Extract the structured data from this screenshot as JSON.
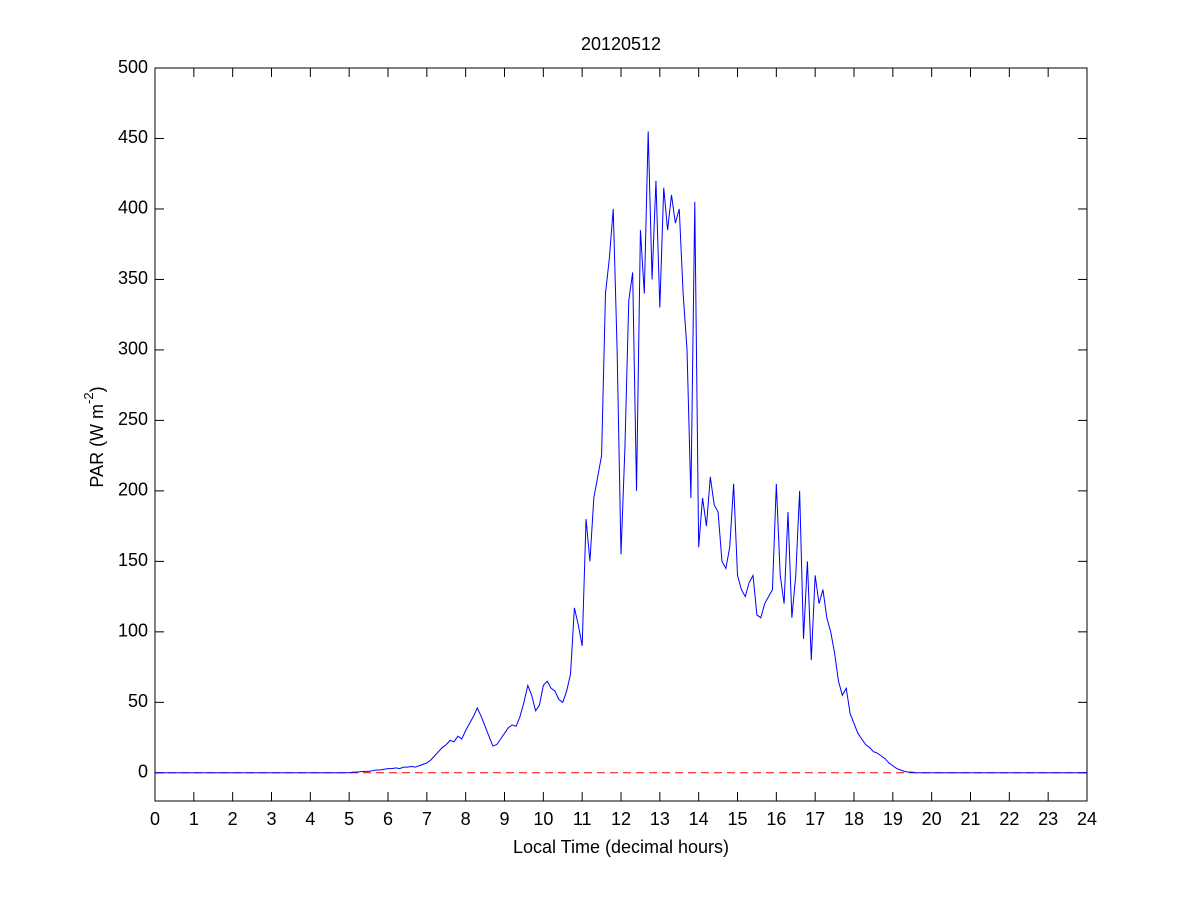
{
  "chart_data": {
    "type": "line",
    "title": "20120512",
    "xlabel": "Local Time (decimal hours)",
    "ylabel": [
      "PAR (W m",
      "-2",
      ")"
    ],
    "x": [
      0,
      5,
      5.1,
      5.2,
      5.3,
      5.4,
      5.5,
      5.6,
      5.7,
      5.8,
      5.9,
      6,
      6.1,
      6.2,
      6.3,
      6.4,
      6.5,
      6.6,
      6.7,
      6.8,
      6.9,
      7,
      7.1,
      7.2,
      7.3,
      7.4,
      7.5,
      7.6,
      7.7,
      7.8,
      7.9,
      8,
      8.1,
      8.2,
      8.3,
      8.4,
      8.5,
      8.6,
      8.7,
      8.8,
      8.9,
      9,
      9.1,
      9.2,
      9.3,
      9.4,
      9.5,
      9.6,
      9.7,
      9.8,
      9.9,
      10,
      10.1,
      10.2,
      10.3,
      10.4,
      10.5,
      10.6,
      10.7,
      10.8,
      10.9,
      11,
      11.1,
      11.2,
      11.3,
      11.4,
      11.5,
      11.6,
      11.7,
      11.8,
      11.9,
      12,
      12.1,
      12.2,
      12.3,
      12.4,
      12.5,
      12.6,
      12.7,
      12.8,
      12.9,
      13,
      13.1,
      13.2,
      13.3,
      13.4,
      13.5,
      13.6,
      13.7,
      13.8,
      13.9,
      14,
      14.1,
      14.2,
      14.3,
      14.4,
      14.5,
      14.6,
      14.7,
      14.8,
      14.9,
      15,
      15.1,
      15.2,
      15.3,
      15.4,
      15.5,
      15.6,
      15.7,
      15.8,
      15.9,
      16,
      16.1,
      16.2,
      16.3,
      16.4,
      16.5,
      16.6,
      16.7,
      16.8,
      16.9,
      17,
      17.1,
      17.2,
      17.3,
      17.4,
      17.5,
      17.6,
      17.7,
      17.8,
      17.9,
      18,
      18.1,
      18.2,
      18.3,
      18.4,
      18.5,
      18.6,
      18.7,
      18.8,
      18.9,
      19,
      19.1,
      19.2,
      19.3,
      19.4,
      19.5,
      19.6,
      19.7,
      19.8,
      24
    ],
    "values": [
      0,
      0,
      0.5,
      0.5,
      0.8,
      1,
      1,
      1.5,
      2,
      2,
      2.5,
      3,
      3,
      3.5,
      3,
      4,
      4,
      4.5,
      4,
      5,
      6,
      7,
      9,
      12,
      15,
      18,
      20,
      23,
      22,
      26,
      24,
      30,
      35,
      40,
      46,
      40,
      33,
      26,
      19,
      20,
      24,
      28,
      32,
      34,
      33,
      40,
      50,
      62,
      55,
      44,
      48,
      62,
      65,
      60,
      58,
      52,
      50,
      58,
      70,
      117,
      105,
      90,
      180,
      150,
      195,
      210,
      225,
      340,
      365,
      400,
      300,
      155,
      230,
      335,
      355,
      200,
      385,
      340,
      455,
      350,
      420,
      330,
      415,
      385,
      410,
      390,
      400,
      340,
      300,
      195,
      405,
      160,
      195,
      175,
      210,
      190,
      185,
      150,
      145,
      160,
      205,
      140,
      130,
      125,
      135,
      140,
      112,
      110,
      120,
      125,
      130,
      205,
      140,
      120,
      185,
      110,
      140,
      200,
      95,
      150,
      80,
      140,
      120,
      130,
      110,
      100,
      85,
      65,
      55,
      60,
      42,
      35,
      28,
      24,
      20,
      18,
      15,
      14,
      12,
      10,
      7,
      5,
      3,
      2,
      1,
      0.5,
      0.5,
      0,
      0,
      0,
      0
    ],
    "color": "#0000ff",
    "reference_line": {
      "value": 0,
      "color": "#ff0000",
      "style": "dashed"
    },
    "xlim": [
      0,
      24
    ],
    "xticks": [
      0,
      1,
      2,
      3,
      4,
      5,
      6,
      7,
      8,
      9,
      10,
      11,
      12,
      13,
      14,
      15,
      16,
      17,
      18,
      19,
      20,
      21,
      22,
      23,
      24
    ],
    "ylim": [
      -20,
      500
    ],
    "yticks": [
      0,
      50,
      100,
      150,
      200,
      250,
      300,
      350,
      400,
      450,
      500
    ],
    "grid": false
  }
}
